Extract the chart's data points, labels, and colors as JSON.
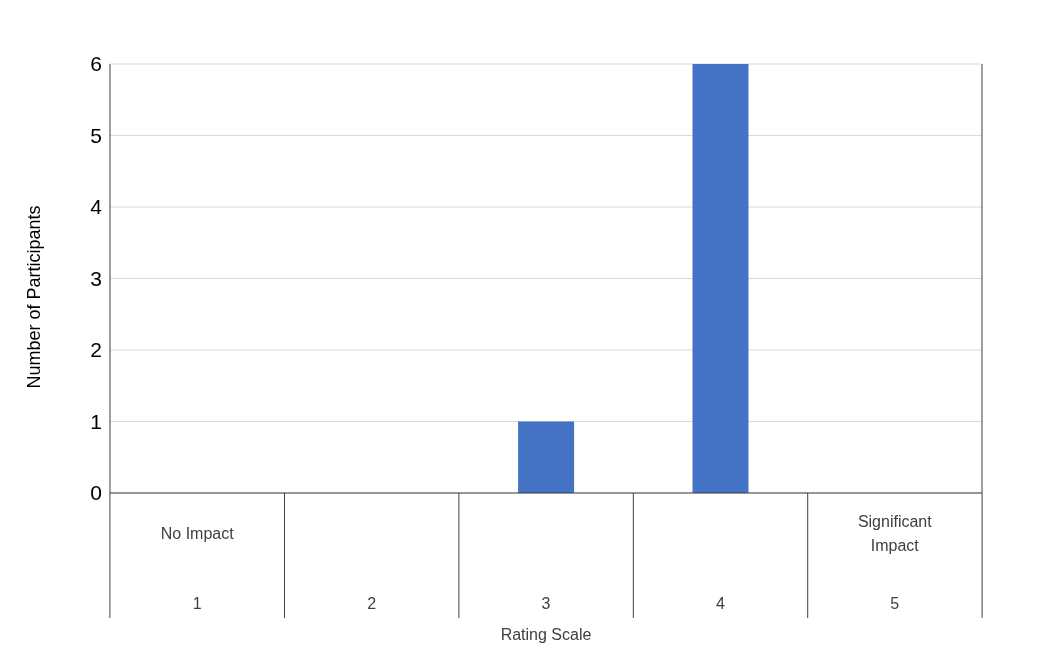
{
  "chart_data": {
    "type": "bar",
    "xlabel": "Rating Scale",
    "ylabel": "Number of Participants",
    "categories": [
      "1",
      "2",
      "3",
      "4",
      "5"
    ],
    "values": [
      0,
      0,
      1,
      6,
      0
    ],
    "color": "#4472c4",
    "ylim": [
      0,
      6
    ],
    "yticks": [
      0,
      1,
      2,
      3,
      4,
      5,
      6
    ],
    "grid": "y",
    "legend": false,
    "annotations": [
      "No Impact",
      "Significant Impact"
    ]
  }
}
